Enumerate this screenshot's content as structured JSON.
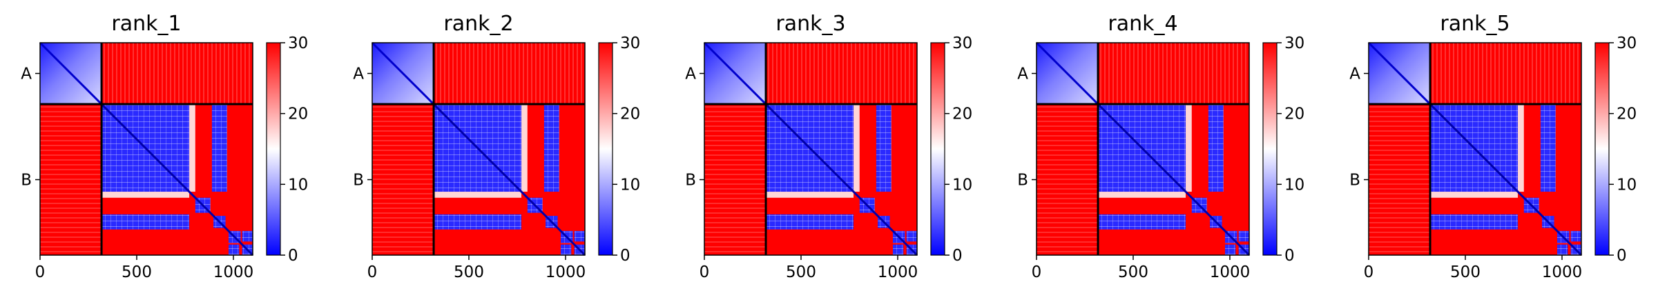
{
  "chart_data": [
    {
      "type": "heatmap",
      "title": "rank_1",
      "chains": [
        {
          "label": "A",
          "length": 318
        },
        {
          "label": "B",
          "length": 782
        }
      ],
      "x_ticks": [
        "0",
        "500",
        "1000"
      ],
      "x_tick_values": [
        0,
        500,
        1000
      ],
      "colorbar": {
        "min": 0,
        "max": 30,
        "ticks": [
          "0",
          "10",
          "20",
          "30"
        ],
        "colormap": "bwr"
      },
      "xlim": [
        0,
        1100
      ]
    },
    {
      "type": "heatmap",
      "title": "rank_2",
      "chains": [
        {
          "label": "A",
          "length": 318
        },
        {
          "label": "B",
          "length": 782
        }
      ],
      "x_ticks": [
        "0",
        "500",
        "1000"
      ],
      "x_tick_values": [
        0,
        500,
        1000
      ],
      "colorbar": {
        "min": 0,
        "max": 30,
        "ticks": [
          "0",
          "10",
          "20",
          "30"
        ],
        "colormap": "bwr"
      },
      "xlim": [
        0,
        1100
      ]
    },
    {
      "type": "heatmap",
      "title": "rank_3",
      "chains": [
        {
          "label": "A",
          "length": 318
        },
        {
          "label": "B",
          "length": 782
        }
      ],
      "x_ticks": [
        "0",
        "500",
        "1000"
      ],
      "x_tick_values": [
        0,
        500,
        1000
      ],
      "colorbar": {
        "min": 0,
        "max": 30,
        "ticks": [
          "0",
          "10",
          "20",
          "30"
        ],
        "colormap": "bwr"
      },
      "xlim": [
        0,
        1100
      ]
    },
    {
      "type": "heatmap",
      "title": "rank_4",
      "chains": [
        {
          "label": "A",
          "length": 318
        },
        {
          "label": "B",
          "length": 782
        }
      ],
      "x_ticks": [
        "0",
        "500",
        "1000"
      ],
      "x_tick_values": [
        0,
        500,
        1000
      ],
      "colorbar": {
        "min": 0,
        "max": 30,
        "ticks": [
          "0",
          "10",
          "20",
          "30"
        ],
        "colormap": "bwr"
      },
      "xlim": [
        0,
        1100
      ]
    },
    {
      "type": "heatmap",
      "title": "rank_5",
      "chains": [
        {
          "label": "A",
          "length": 318
        },
        {
          "label": "B",
          "length": 782
        }
      ],
      "x_ticks": [
        "0",
        "500",
        "1000"
      ],
      "x_tick_values": [
        0,
        500,
        1000
      ],
      "colorbar": {
        "min": 0,
        "max": 30,
        "ticks": [
          "0",
          "10",
          "20",
          "30"
        ],
        "colormap": "bwr"
      },
      "xlim": [
        0,
        1100
      ]
    }
  ],
  "colors": {
    "low": "#0000ff",
    "mid": "#ffffff",
    "high": "#ff0000",
    "boundary": "#000000"
  }
}
